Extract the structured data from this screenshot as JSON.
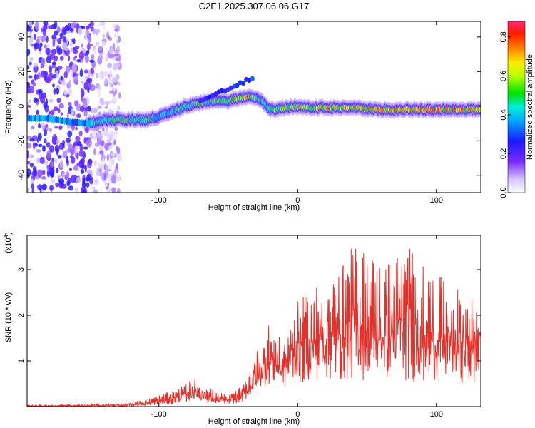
{
  "title": "C2E1.2025.307.06.06.G17",
  "colorbar": {
    "label": "Normalized spectral amplitude",
    "ticks": [
      "0.0",
      "0.2",
      "0.4",
      "0.6",
      "0.8"
    ],
    "tick_values": [
      0.0,
      0.2,
      0.4,
      0.6,
      0.8
    ],
    "range": [
      0.0,
      0.88
    ]
  },
  "chart_data": [
    {
      "type": "heatmap",
      "title": "C2E1.2025.307.06.06.G17",
      "xlabel": "Height of straight line (km)",
      "ylabel": "Frequency (Hz)",
      "xlim": [
        -195,
        132
      ],
      "ylim": [
        -50,
        49
      ],
      "xticks": [
        -100,
        0,
        100
      ],
      "xtick_labels": [
        "-100",
        "0",
        "100"
      ],
      "yticks": [
        -40,
        -20,
        0,
        20,
        40
      ],
      "ytick_labels": [
        "-40",
        "-20",
        "0",
        "20",
        "40"
      ],
      "colorbar_label": "Normalized spectral amplitude",
      "colorbar_range": [
        0.0,
        0.88
      ],
      "ridge": {
        "description": "Main spectral ridge (frequency vs height)",
        "x": [
          -195,
          -180,
          -165,
          -150,
          -140,
          -130,
          -120,
          -110,
          -100,
          -90,
          -80,
          -70,
          -60,
          -50,
          -40,
          -35,
          -30,
          -25,
          -20,
          -10,
          0,
          10,
          20,
          40,
          60,
          80,
          100,
          120,
          132
        ],
        "y": [
          -7,
          -7,
          -9,
          -10,
          -8,
          -8,
          -8,
          -8,
          -6,
          -3,
          0,
          2,
          3,
          3,
          5,
          6,
          5,
          2,
          -2,
          -1,
          0,
          -1,
          -1,
          -1,
          -2,
          -2,
          -2,
          -2,
          -2
        ],
        "peak_amplitude": [
          0.3,
          0.3,
          0.4,
          0.5,
          0.55,
          0.6,
          0.6,
          0.55,
          0.5,
          0.5,
          0.55,
          0.6,
          0.6,
          0.6,
          0.7,
          0.7,
          0.6,
          0.5,
          0.6,
          0.7,
          0.7,
          0.75,
          0.8,
          0.75,
          0.8,
          0.85,
          0.85,
          0.8,
          0.8
        ]
      },
      "noise_region_x": [
        -195,
        -148
      ]
    },
    {
      "type": "line",
      "xlabel": "Height of straight line (km)",
      "ylabel": "SNR (10 * v/v)",
      "y_multiplier_label": "(x10",
      "y_multiplier_exponent": "4",
      "y_multiplier_close": ")",
      "xlim": [
        -195,
        132
      ],
      "ylim": [
        0,
        3.75
      ],
      "xticks": [
        -100,
        0,
        100
      ],
      "xtick_labels": [
        "-100",
        "0",
        "100"
      ],
      "yticks": [
        1,
        2,
        3
      ],
      "ytick_labels": [
        "1",
        "2",
        "3"
      ],
      "series": [
        {
          "name": "SNR",
          "color": "#e8302a",
          "envelope_x": [
            -195,
            -150,
            -125,
            -110,
            -100,
            -90,
            -80,
            -75,
            -70,
            -60,
            -50,
            -40,
            -35,
            -30,
            -25,
            -20,
            -15,
            -10,
            -5,
            0,
            10,
            20,
            30,
            40,
            50,
            60,
            70,
            80,
            90,
            100,
            110,
            120,
            132
          ],
          "envelope_low": [
            0.0,
            0.0,
            0.0,
            0.02,
            0.03,
            0.05,
            0.1,
            0.15,
            0.1,
            0.05,
            0.05,
            0.1,
            0.2,
            0.3,
            0.4,
            0.5,
            0.5,
            0.4,
            0.5,
            0.5,
            0.55,
            0.6,
            0.55,
            0.6,
            0.55,
            0.6,
            0.6,
            0.55,
            0.5,
            0.55,
            0.5,
            0.5,
            0.45
          ],
          "envelope_high": [
            0.03,
            0.05,
            0.08,
            0.15,
            0.25,
            0.35,
            0.5,
            0.65,
            0.55,
            0.35,
            0.25,
            0.45,
            0.8,
            1.2,
            1.5,
            1.9,
            1.6,
            1.4,
            2.0,
            2.3,
            2.6,
            2.9,
            3.0,
            3.55,
            3.45,
            3.2,
            3.3,
            3.7,
            3.1,
            2.9,
            2.7,
            2.5,
            2.5
          ]
        }
      ]
    }
  ]
}
